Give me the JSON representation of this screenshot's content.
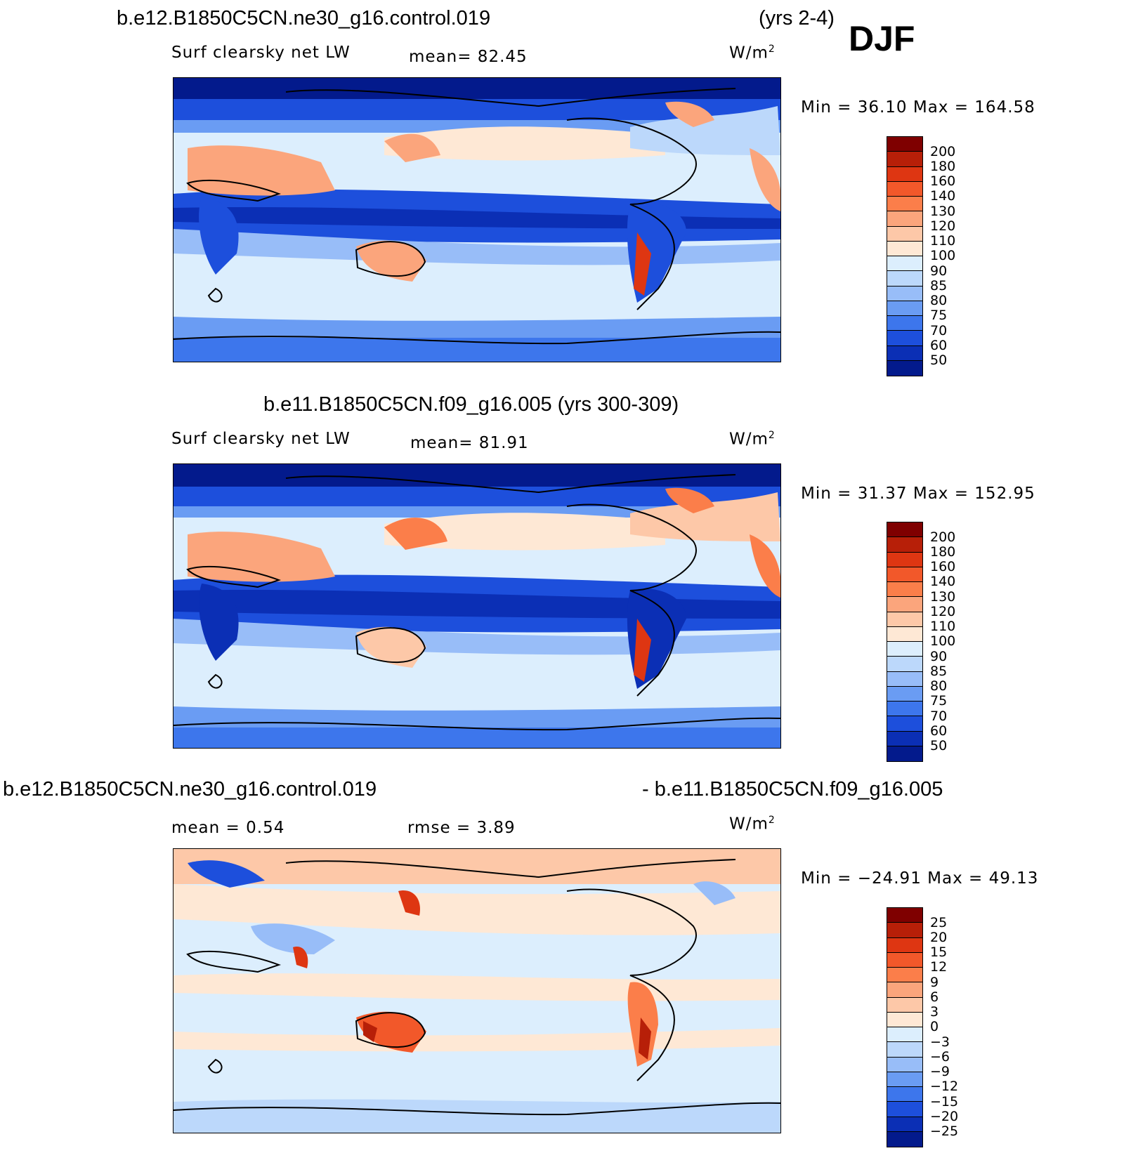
{
  "season": "DJF",
  "panels": [
    {
      "title_left": "b.e12.B1850C5CN.ne30_g16.control.019",
      "title_right": "(yrs 2-4)",
      "variable": "Surf clearsky net LW",
      "stat_text": "mean=   82.45",
      "units": "W/m",
      "units_sup": "2",
      "minmax": "Min =   36.10  Max = 164.58",
      "colorbar": {
        "levels": [
          "200",
          "180",
          "160",
          "140",
          "130",
          "120",
          "110",
          "100",
          "90",
          "85",
          "80",
          "75",
          "70",
          "60",
          "50"
        ],
        "colors": [
          "#7f0000",
          "#b71f08",
          "#de3612",
          "#f2582a",
          "#fb7e4a",
          "#fba57c",
          "#fdc8a8",
          "#fee8d5",
          "#dceefd",
          "#bcd8fb",
          "#98bdf8",
          "#6a9cf3",
          "#3d76ec",
          "#1d4fdc",
          "#0b2fb5",
          "#031a8c"
        ]
      }
    },
    {
      "title_left": "b.e11.B1850C5CN.f09_g16.005 (yrs 300-309)",
      "variable": "Surf clearsky net LW",
      "stat_text": "mean=   81.91",
      "units": "W/m",
      "units_sup": "2",
      "minmax": "Min =   31.37  Max = 152.95",
      "colorbar": {
        "levels": [
          "200",
          "180",
          "160",
          "140",
          "130",
          "120",
          "110",
          "100",
          "90",
          "85",
          "80",
          "75",
          "70",
          "60",
          "50"
        ],
        "colors": [
          "#7f0000",
          "#b71f08",
          "#de3612",
          "#f2582a",
          "#fb7e4a",
          "#fba57c",
          "#fdc8a8",
          "#fee8d5",
          "#dceefd",
          "#bcd8fb",
          "#98bdf8",
          "#6a9cf3",
          "#3d76ec",
          "#1d4fdc",
          "#0b2fb5",
          "#031a8c"
        ]
      }
    },
    {
      "title_left": "b.e12.B1850C5CN.ne30_g16.control.019",
      "title_right": "- b.e11.B1850C5CN.f09_g16.005",
      "mean_text": "mean =    0.54",
      "rmse_text": "rmse =    3.89",
      "units": "W/m",
      "units_sup": "2",
      "minmax": "Min = −24.91  Max =   49.13",
      "colorbar": {
        "levels": [
          "25",
          "20",
          "15",
          "12",
          "9",
          "6",
          "3",
          "0",
          "−3",
          "−6",
          "−9",
          "−12",
          "−15",
          "−20",
          "−25"
        ],
        "colors": [
          "#7f0000",
          "#b71f08",
          "#de3612",
          "#f2582a",
          "#fb7e4a",
          "#fba57c",
          "#fdc8a8",
          "#fee8d5",
          "#dceefd",
          "#bcd8fb",
          "#98bdf8",
          "#6a9cf3",
          "#3d76ec",
          "#1d4fdc",
          "#0b2fb5",
          "#031a8c"
        ]
      }
    }
  ]
}
